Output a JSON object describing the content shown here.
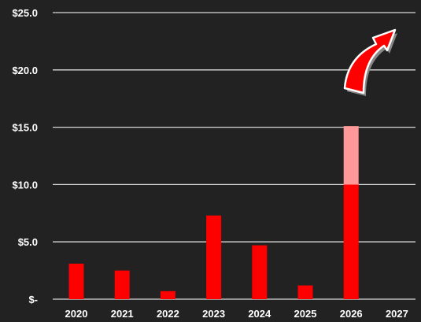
{
  "chart_data": {
    "type": "bar",
    "title": "",
    "xlabel": "",
    "ylabel": "",
    "categories": [
      "2020",
      "2021",
      "2022",
      "2023",
      "2024",
      "2025",
      "2026",
      "2027"
    ],
    "series": [
      {
        "values": [
          3.1,
          2.5,
          0.7,
          7.3,
          4.7,
          1.2,
          10.0,
          0
        ],
        "color": "#ff0000"
      },
      {
        "values": [
          0,
          0,
          0,
          0,
          0,
          0,
          5.1,
          0
        ],
        "color": "#ff9999"
      }
    ],
    "stacked": true,
    "ylim": [
      0,
      25
    ],
    "y_ticks": [
      {
        "value": 0,
        "label": "$-"
      },
      {
        "value": 5,
        "label": "$5.0"
      },
      {
        "value": 10,
        "label": "$10.0"
      },
      {
        "value": 15,
        "label": "$15.0"
      },
      {
        "value": 20,
        "label": "$20.0"
      },
      {
        "value": 25,
        "label": "$25.0"
      }
    ],
    "grid": true,
    "legend": "none",
    "background_color": "#222222",
    "annotation": {
      "kind": "upward-trend-arrow",
      "color": "#ff0000",
      "outline_color": "#ffffff"
    }
  }
}
